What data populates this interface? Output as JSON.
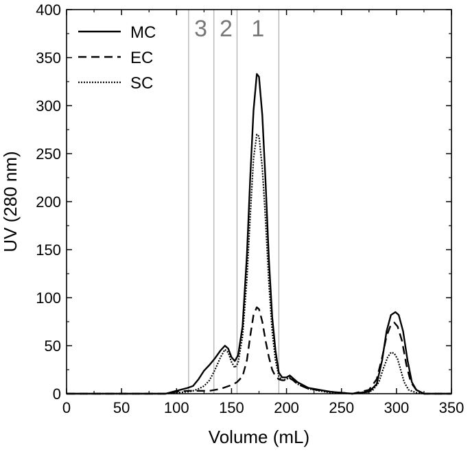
{
  "chart_data": {
    "type": "line",
    "xlabel": "Volume (mL)",
    "ylabel": "UV (280 nm)",
    "xlim": [
      0,
      350
    ],
    "ylim": [
      0,
      400
    ],
    "x_ticks": [
      0,
      50,
      100,
      150,
      200,
      250,
      300,
      350
    ],
    "y_ticks": [
      0,
      50,
      100,
      150,
      200,
      250,
      300,
      350,
      400
    ],
    "grid": false,
    "legend_position": "top-left",
    "region_lines": [
      111,
      134,
      155,
      193
    ],
    "region_labels": [
      {
        "text": "3",
        "x": 122
      },
      {
        "text": "2",
        "x": 145
      },
      {
        "text": "1",
        "x": 174
      }
    ],
    "series": [
      {
        "name": "MC",
        "style": "solid",
        "points": [
          [
            0,
            0
          ],
          [
            20,
            0
          ],
          [
            90,
            0
          ],
          [
            100,
            3
          ],
          [
            110,
            6
          ],
          [
            115,
            8
          ],
          [
            120,
            15
          ],
          [
            125,
            24
          ],
          [
            130,
            30
          ],
          [
            135,
            37
          ],
          [
            140,
            45
          ],
          [
            144,
            50
          ],
          [
            147,
            47
          ],
          [
            150,
            38
          ],
          [
            153,
            34
          ],
          [
            156,
            40
          ],
          [
            160,
            70
          ],
          [
            164,
            145
          ],
          [
            167,
            225
          ],
          [
            170,
            295
          ],
          [
            173,
            333
          ],
          [
            175,
            330
          ],
          [
            178,
            290
          ],
          [
            181,
            220
          ],
          [
            184,
            140
          ],
          [
            187,
            80
          ],
          [
            190,
            45
          ],
          [
            193,
            22
          ],
          [
            196,
            17
          ],
          [
            200,
            17
          ],
          [
            203,
            19
          ],
          [
            206,
            16
          ],
          [
            210,
            12
          ],
          [
            220,
            6
          ],
          [
            240,
            2
          ],
          [
            260,
            0
          ],
          [
            275,
            2
          ],
          [
            282,
            10
          ],
          [
            287,
            35
          ],
          [
            291,
            65
          ],
          [
            295,
            82
          ],
          [
            299,
            85
          ],
          [
            302,
            82
          ],
          [
            306,
            65
          ],
          [
            310,
            35
          ],
          [
            314,
            12
          ],
          [
            318,
            4
          ],
          [
            325,
            0
          ],
          [
            350,
            0
          ]
        ]
      },
      {
        "name": "EC",
        "style": "dashed",
        "points": [
          [
            0,
            0
          ],
          [
            90,
            0
          ],
          [
            100,
            2
          ],
          [
            110,
            3
          ],
          [
            120,
            3
          ],
          [
            130,
            3
          ],
          [
            140,
            5
          ],
          [
            150,
            9
          ],
          [
            155,
            12
          ],
          [
            160,
            18
          ],
          [
            164,
            35
          ],
          [
            167,
            60
          ],
          [
            170,
            82
          ],
          [
            173,
            90
          ],
          [
            175,
            88
          ],
          [
            178,
            75
          ],
          [
            181,
            55
          ],
          [
            184,
            38
          ],
          [
            187,
            25
          ],
          [
            190,
            18
          ],
          [
            193,
            15
          ],
          [
            196,
            14
          ],
          [
            200,
            14
          ],
          [
            203,
            16
          ],
          [
            206,
            14
          ],
          [
            210,
            10
          ],
          [
            220,
            5
          ],
          [
            240,
            2
          ],
          [
            260,
            0
          ],
          [
            275,
            4
          ],
          [
            282,
            15
          ],
          [
            287,
            38
          ],
          [
            291,
            60
          ],
          [
            295,
            72
          ],
          [
            298,
            74
          ],
          [
            301,
            70
          ],
          [
            305,
            55
          ],
          [
            309,
            30
          ],
          [
            313,
            12
          ],
          [
            318,
            4
          ],
          [
            325,
            0
          ],
          [
            350,
            0
          ]
        ]
      },
      {
        "name": "SC",
        "style": "dotted",
        "points": [
          [
            0,
            0
          ],
          [
            90,
            0
          ],
          [
            100,
            1
          ],
          [
            110,
            2
          ],
          [
            115,
            3
          ],
          [
            120,
            5
          ],
          [
            125,
            8
          ],
          [
            130,
            14
          ],
          [
            135,
            25
          ],
          [
            140,
            38
          ],
          [
            144,
            46
          ],
          [
            147,
            43
          ],
          [
            150,
            33
          ],
          [
            153,
            27
          ],
          [
            156,
            32
          ],
          [
            160,
            60
          ],
          [
            164,
            120
          ],
          [
            167,
            185
          ],
          [
            170,
            245
          ],
          [
            173,
            270
          ],
          [
            175,
            268
          ],
          [
            178,
            235
          ],
          [
            181,
            180
          ],
          [
            184,
            115
          ],
          [
            187,
            65
          ],
          [
            190,
            35
          ],
          [
            193,
            18
          ],
          [
            196,
            14
          ],
          [
            200,
            15
          ],
          [
            203,
            17
          ],
          [
            206,
            14
          ],
          [
            210,
            10
          ],
          [
            220,
            5
          ],
          [
            240,
            1
          ],
          [
            260,
            0
          ],
          [
            278,
            3
          ],
          [
            284,
            12
          ],
          [
            288,
            26
          ],
          [
            292,
            38
          ],
          [
            295,
            43
          ],
          [
            298,
            42
          ],
          [
            301,
            36
          ],
          [
            304,
            24
          ],
          [
            307,
            12
          ],
          [
            311,
            4
          ],
          [
            318,
            1
          ],
          [
            325,
            0
          ],
          [
            350,
            0
          ]
        ]
      }
    ]
  }
}
